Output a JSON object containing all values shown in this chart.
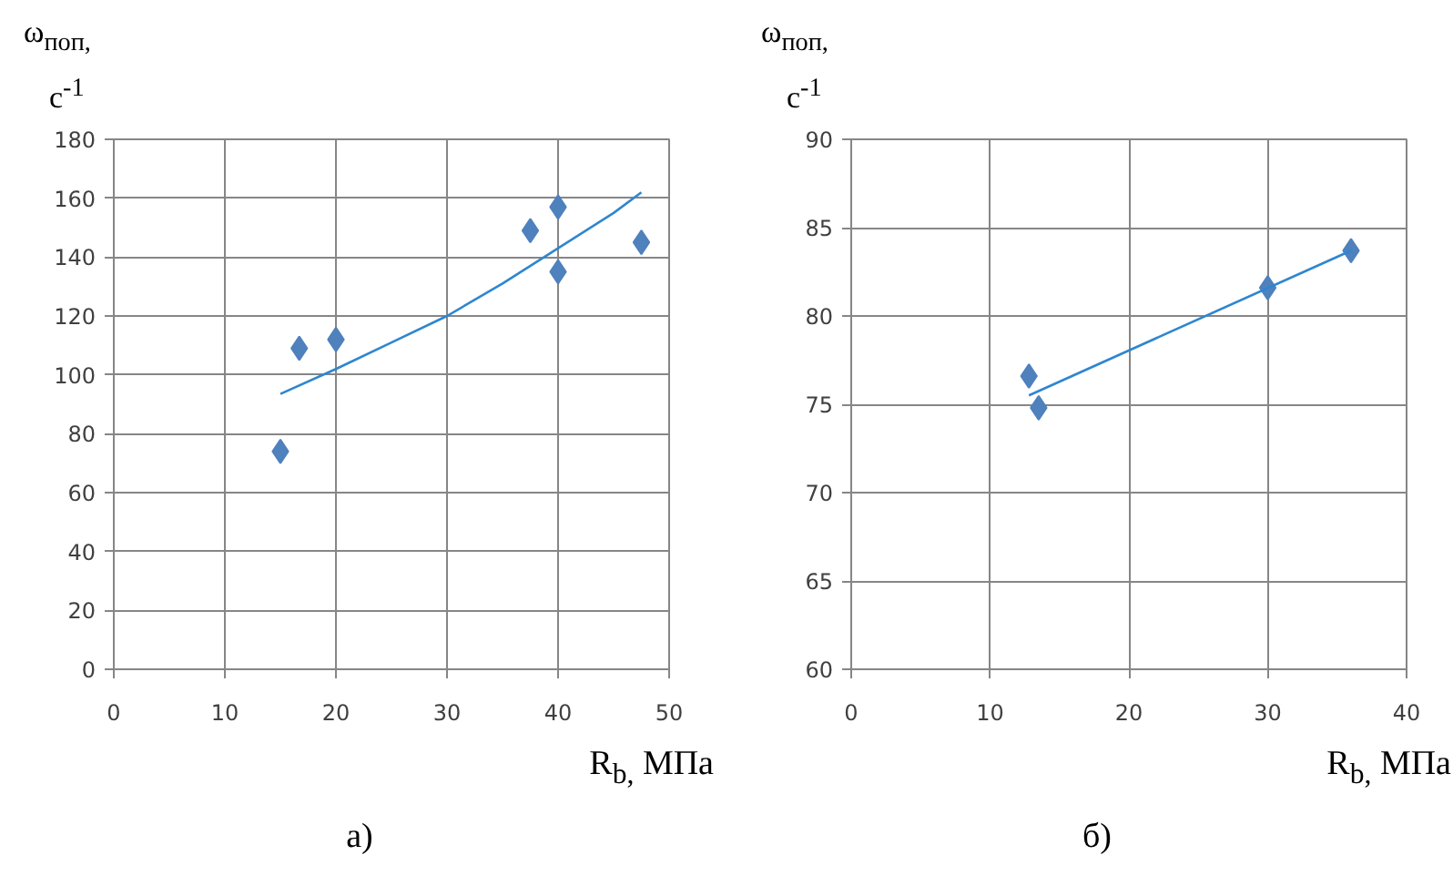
{
  "chart_data": [
    {
      "type": "scatter",
      "ylabel": "ω$_{поп,}$ с$^{-1}$",
      "xlabel": "R$_{b,}$ МПа",
      "annotations": [
        "а)"
      ],
      "grid": true,
      "xlim": [
        0,
        50
      ],
      "xticks": [
        0,
        10,
        20,
        30,
        40,
        50
      ],
      "ylim": [
        0,
        180
      ],
      "yticks": [
        0,
        20,
        40,
        60,
        80,
        100,
        120,
        140,
        160,
        180
      ],
      "series": [
        {
          "marker": "diamond",
          "color": "#4f81bd",
          "x": [
            15,
            16.7,
            20,
            37.5,
            40,
            40,
            47.5
          ],
          "values": [
            74,
            109,
            112,
            149,
            157,
            135,
            145
          ]
        },
        {
          "type": "line",
          "marker": "none",
          "color": "#2e86d0",
          "x": [
            15,
            20,
            25,
            30,
            35,
            40,
            45,
            47.5
          ],
          "values": [
            93.5,
            102,
            111,
            120,
            131,
            143,
            155,
            162
          ]
        }
      ]
    },
    {
      "type": "scatter",
      "ylabel": "ω$_{поп,}$ с$^{-1}$",
      "xlabel": "R$_{b,}$ МПа",
      "annotations": [
        "б)"
      ],
      "grid": true,
      "xlim": [
        0,
        40
      ],
      "xticks": [
        0,
        10,
        20,
        30,
        40
      ],
      "ylim": [
        60,
        90
      ],
      "yticks": [
        60,
        65,
        70,
        75,
        80,
        85,
        90
      ],
      "series": [
        {
          "marker": "diamond",
          "color": "#4f81bd",
          "x": [
            12.8,
            13.5,
            30,
            36
          ],
          "values": [
            76.6,
            74.8,
            81.6,
            83.7
          ]
        },
        {
          "type": "line",
          "marker": "none",
          "color": "#2e86d0",
          "x": [
            12.8,
            36
          ],
          "values": [
            75.5,
            83.7
          ]
        }
      ]
    }
  ]
}
